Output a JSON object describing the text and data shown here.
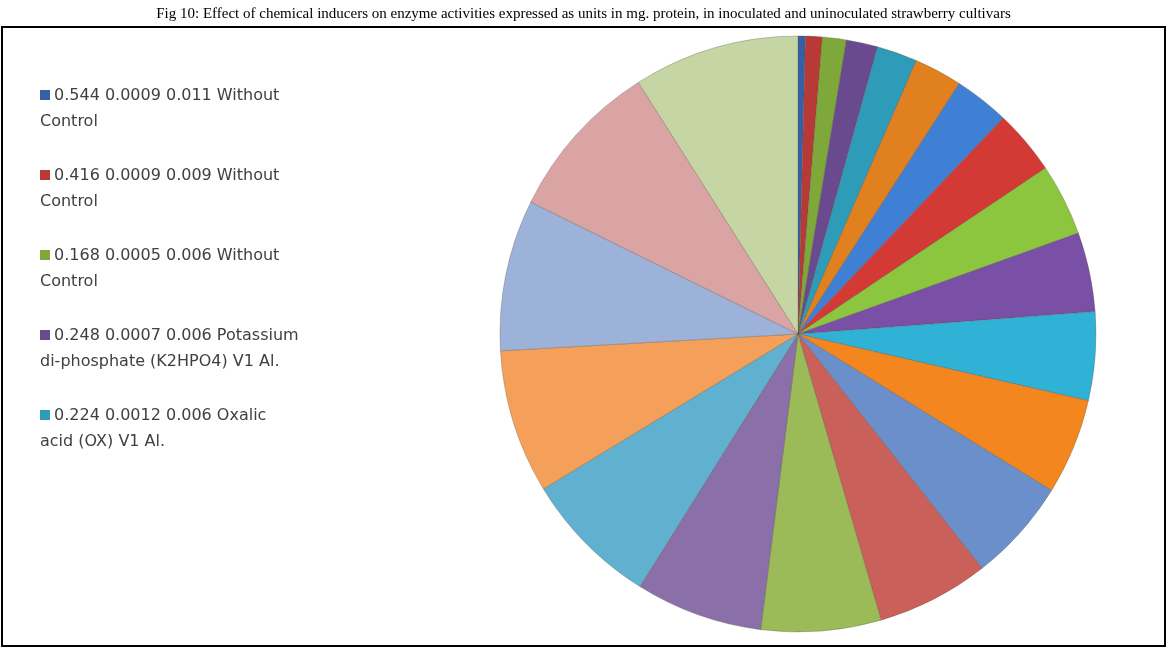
{
  "chart_data": {
    "type": "pie",
    "title": "Fig 10: Effect of chemical inducers on enzyme activities expressed as units in mg. protein, in inoculated and uninoculated strawberry cultivars",
    "categories": [
      "0.544 0.0009 0.011 Without Control",
      "0.416 0.0009 0.009 Without Control",
      "0.168 0.0005 0.006 Without Control",
      "0.248 0.0007 0.006 Potassium di-phosphate (K2HPO4) V1 Al.",
      "0.224 0.0012 0.006 Oxalic acid (OX) V1 Al.",
      null,
      null,
      null,
      null,
      null,
      null,
      null,
      null,
      null,
      null,
      null,
      null,
      null,
      null,
      null,
      null
    ],
    "values": [
      0.4,
      0.9,
      1.3,
      1.7,
      2.2,
      2.6,
      3.0,
      3.5,
      3.9,
      4.3,
      4.8,
      5.2,
      5.6,
      6.1,
      6.5,
      6.9,
      7.4,
      7.8,
      8.2,
      8.7,
      9.0
    ],
    "colors": [
      "#3560a8",
      "#b83a36",
      "#7fa83a",
      "#6a4a8e",
      "#2e9bb8",
      "#e0801f",
      "#3f7fd4",
      "#d33a35",
      "#8cc63f",
      "#7a4fa6",
      "#2fb2d6",
      "#f3861f",
      "#6a8fcb",
      "#c9605a",
      "#9bbb59",
      "#8a6fa8",
      "#5fb1cf",
      "#f5a05a",
      "#9db2d8",
      "#dba4a4",
      "#c5d6a4"
    ],
    "legend": "left"
  }
}
